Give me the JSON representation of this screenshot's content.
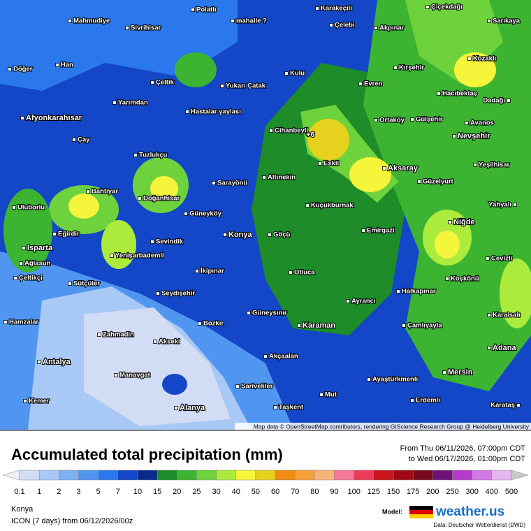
{
  "map": {
    "marker": "+6",
    "attribution": "Map data © OpenStreetMap contributors, rendering GIScience Research Group @ Heidelberg University",
    "places": [
      "Karakeçili",
      "Polatlı",
      "Çiçekdağı",
      "Mahmudiye",
      "Sivrihisar",
      "mahalle ?",
      "Çelebi",
      "Akpınar",
      "Sarıkaya",
      "Han",
      "Döğer",
      "Kozaklı",
      "Kırşehir",
      "Kulu",
      "Evren",
      "Çeltik",
      "Yukarı Çatak",
      "Hacıbektaş",
      "Dadağı",
      "Yarımdan",
      "Hastalar yaylası",
      "Ortaköy",
      "Gülşehir",
      "Avanos",
      "Afyonkarahisar",
      "Cihanbeyli",
      "Nevşehir",
      "Çay",
      "Tuzlukçu",
      "Eskil",
      "Aksaray",
      "Yeşilhisar",
      "Bahtiyar",
      "Altınekin",
      "Sarayönü",
      "Güzelyurt",
      "Doğanhisar",
      "Uluborlu",
      "Küçükburnak",
      "Yahyalı",
      "Güneyköy",
      "Eğirdir",
      "Konya",
      "Göçü",
      "Emirgazi",
      "Niğde",
      "Sevindik",
      "Isparta",
      "Yenişarbademli",
      "Ağlasun",
      "İkipınar",
      "Otluca",
      "Çeltikçi",
      "Sütçüler",
      "Koşkönü",
      "Cevizli",
      "Halkapınar",
      "Seydişehir",
      "Ayrancı",
      "Karaisalı",
      "Güneysınır",
      "Hamzalar",
      "Bozkır",
      "Karaman",
      "Çamlıyayla",
      "Zahmadin",
      "Akseki",
      "Adana",
      "Akçaalan",
      "Antalya",
      "Mersin",
      "Manavgat",
      "Ayaştürkmenli",
      "Sariveliler",
      "Mut",
      "Erdemli",
      "Kemer",
      "Alanya",
      "Taşkent",
      "Karataş"
    ]
  },
  "legend": {
    "title": "Accumulated total precipitation (mm)",
    "period_from": "From Thu 06/11/2026, 07:00pm CDT",
    "period_to": "to Wed 06/17/2026, 01:00pm CDT",
    "labels": [
      "0.1",
      "1",
      "2",
      "3",
      "5",
      "7",
      "10",
      "15",
      "20",
      "25",
      "30",
      "40",
      "50",
      "60",
      "70",
      "80",
      "90",
      "100",
      "125",
      "150",
      "175",
      "200",
      "250",
      "300",
      "400",
      "500"
    ],
    "colors": [
      "#f0f0f8",
      "#d2dcf5",
      "#a8c8f5",
      "#7eb0f5",
      "#5096f0",
      "#2a78eb",
      "#1446c8",
      "#0a2a8c",
      "#1e8c28",
      "#3cb432",
      "#6ed23c",
      "#aaeb3c",
      "#f5f53c",
      "#e6d21e",
      "#f08c14",
      "#f5a03c",
      "#f5b478",
      "#f57896",
      "#eb3c5a",
      "#c8141e",
      "#a00a14",
      "#780a1e",
      "#6e1478",
      "#b43cc8",
      "#d278e6",
      "#e6b4f0",
      "#f5e6f5",
      "#c8c8c8"
    ],
    "location": "Konya",
    "model_run": "ICON (7 days)  from  06/12/2026/00z",
    "model_label": "Model:",
    "brand": "weather.us",
    "source": "Data: Deutscher Wetterdienst (DWD)"
  }
}
